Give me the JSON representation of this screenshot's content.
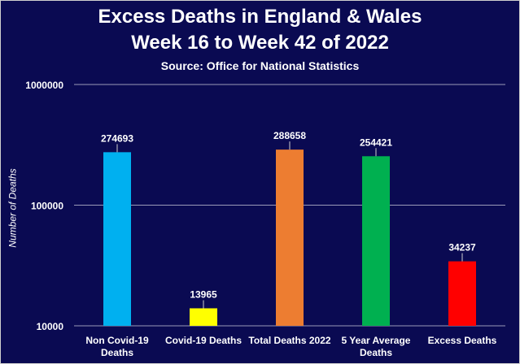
{
  "chart_data": {
    "type": "bar",
    "title": "Excess Deaths in England & Wales",
    "title_line2": "Week 16 to Week 42 of 2022",
    "subtitle": "Source: Office for National Statistics",
    "ylabel": "Number of Deaths",
    "xlabel": "",
    "yscale": "log",
    "ylim": [
      10000,
      1000000
    ],
    "yticks": [
      10000,
      100000,
      1000000
    ],
    "ytick_labels": [
      "10000",
      "100000",
      "1000000"
    ],
    "grid": true,
    "categories": [
      [
        "Non Covid-19",
        "Deaths"
      ],
      [
        "Covid-19 Deaths"
      ],
      [
        "Total Deaths 2022"
      ],
      [
        "5 Year Average",
        "Deaths"
      ],
      [
        "Excess Deaths"
      ]
    ],
    "values": [
      274693,
      13965,
      288658,
      254421,
      34237
    ],
    "colors": [
      "#00b0f0",
      "#ffff00",
      "#ed7d31",
      "#00b050",
      "#ff0000"
    ]
  }
}
